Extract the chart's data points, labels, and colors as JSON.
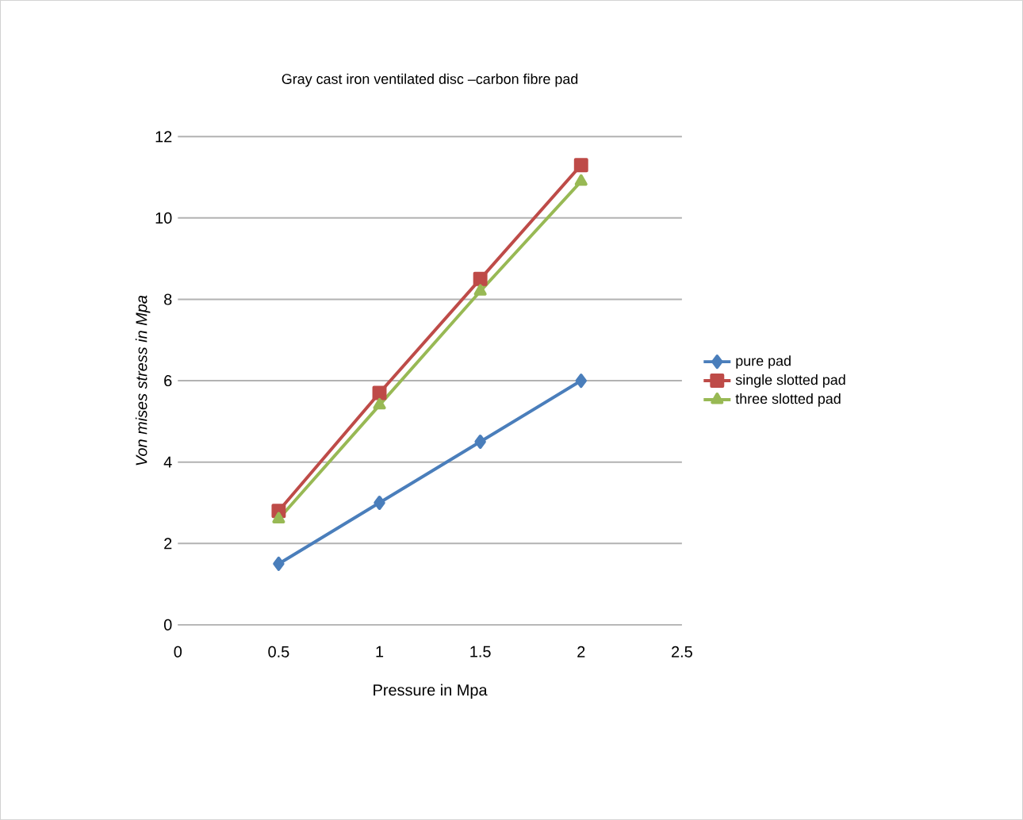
{
  "chart_data": {
    "type": "line",
    "title": "Gray cast iron ventilated disc –carbon fibre pad",
    "xlabel": "Pressure in Mpa",
    "ylabel": "Von mises stress in Mpa",
    "x": [
      0.5,
      1,
      1.5,
      2
    ],
    "series": [
      {
        "name": "pure pad",
        "color": "#4a7ebb",
        "marker": "diamond",
        "values": [
          1.5,
          3,
          4.5,
          6
        ]
      },
      {
        "name": "single slotted  pad",
        "color": "#be4b48",
        "marker": "square",
        "values": [
          2.8,
          5.7,
          8.5,
          11.3
        ]
      },
      {
        "name": "three slotted pad",
        "color": "#98b954",
        "marker": "triangle",
        "values": [
          2.6,
          5.4,
          8.2,
          10.9
        ]
      }
    ],
    "xlim": [
      0,
      2.5
    ],
    "xticks": [
      0,
      0.5,
      1,
      1.5,
      2,
      2.5
    ],
    "ylim": [
      0,
      12
    ],
    "yticks": [
      0,
      2,
      4,
      6,
      8,
      10,
      12
    ],
    "grid": "y",
    "legend": "right",
    "line_style": "solid"
  }
}
